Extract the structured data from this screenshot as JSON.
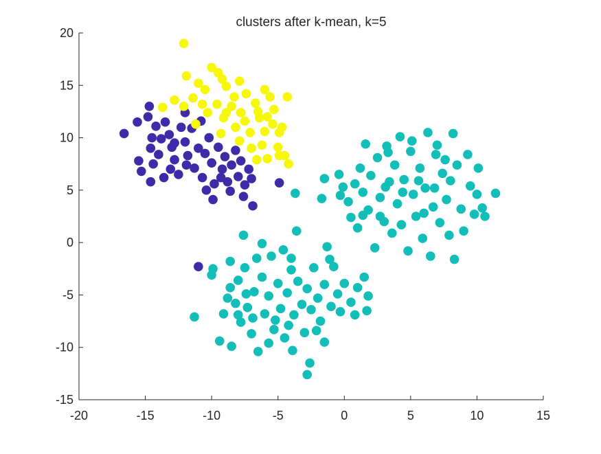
{
  "chart_data": {
    "type": "scatter",
    "title": "clusters after k-mean, k=5",
    "xlabel": "",
    "ylabel": "",
    "xlim": [
      -20,
      15
    ],
    "ylim": [
      -15,
      20
    ],
    "xticks": [
      -20,
      -15,
      -10,
      -5,
      0,
      5,
      10,
      15
    ],
    "yticks": [
      -15,
      -10,
      -5,
      0,
      5,
      10,
      15,
      20
    ],
    "xtick_labels": [
      "-20",
      "-15",
      "-10",
      "-5",
      "0",
      "5",
      "10",
      "15"
    ],
    "ytick_labels": [
      "-15",
      "-10",
      "-5",
      "0",
      "5",
      "10",
      "15",
      "20"
    ],
    "grid": false,
    "legend": "none",
    "axis_color": "#262626",
    "series": [
      {
        "color": "#3F2AA8",
        "points": [
          [
            -16.6,
            10.4
          ],
          [
            -15.6,
            11.5
          ],
          [
            -15.5,
            7.8
          ],
          [
            -15.3,
            6.8
          ],
          [
            -14.7,
            13.0
          ],
          [
            -14.8,
            12.0
          ],
          [
            -14.5,
            10.0
          ],
          [
            -14.6,
            9.0
          ],
          [
            -14.4,
            7.5
          ],
          [
            -14.6,
            5.8
          ],
          [
            -14.0,
            8.4
          ],
          [
            -13.6,
            6.2
          ],
          [
            -13.5,
            11.5
          ],
          [
            -13.2,
            10.3
          ],
          [
            -13.0,
            9.1
          ],
          [
            -12.8,
            7.9
          ],
          [
            -12.5,
            6.5
          ],
          [
            -12.3,
            11.0
          ],
          [
            -12.0,
            9.6
          ],
          [
            -11.8,
            8.3
          ],
          [
            -11.5,
            10.9
          ],
          [
            -11.3,
            7.1
          ],
          [
            -11.0,
            9.0
          ],
          [
            -10.7,
            6.2
          ],
          [
            -10.5,
            8.5
          ],
          [
            -10.2,
            10.0
          ],
          [
            -10.0,
            7.6
          ],
          [
            -9.8,
            5.6
          ],
          [
            -9.5,
            9.1
          ],
          [
            -9.2,
            7.0
          ],
          [
            -9.0,
            8.2
          ],
          [
            -8.8,
            5.8
          ],
          [
            -8.5,
            7.4
          ],
          [
            -8.2,
            8.8
          ],
          [
            -8.0,
            6.3
          ],
          [
            -7.8,
            7.8
          ],
          [
            -7.5,
            5.5
          ],
          [
            -7.2,
            7.0
          ],
          [
            -7.0,
            6.1
          ],
          [
            -7.6,
            4.4
          ],
          [
            -9.9,
            4.1
          ],
          [
            -6.9,
            3.5
          ],
          [
            -4.9,
            5.7
          ],
          [
            -11.0,
            -2.3
          ],
          [
            -12.8,
            9.5
          ],
          [
            -13.8,
            9.9
          ],
          [
            -10.8,
            11.6
          ],
          [
            -12.0,
            12.4
          ],
          [
            -9.3,
            6.2
          ],
          [
            -11.9,
            7.4
          ],
          [
            -10.4,
            5.0
          ],
          [
            -8.6,
            4.9
          ],
          [
            -13.1,
            7.0
          ],
          [
            -14.2,
            11.1
          ]
        ]
      },
      {
        "color": "#F7F70A",
        "points": [
          [
            -12.1,
            19.0
          ],
          [
            -11.9,
            15.9
          ],
          [
            -10.0,
            16.7
          ],
          [
            -9.5,
            16.2
          ],
          [
            -11.0,
            15.2
          ],
          [
            -12.8,
            13.6
          ],
          [
            -13.7,
            12.9
          ],
          [
            -11.4,
            13.8
          ],
          [
            -10.5,
            14.6
          ],
          [
            -9.6,
            13.2
          ],
          [
            -8.9,
            14.9
          ],
          [
            -8.3,
            13.9
          ],
          [
            -7.4,
            14.2
          ],
          [
            -6.7,
            13.3
          ],
          [
            -6.0,
            14.6
          ],
          [
            -5.6,
            13.9
          ],
          [
            -5.3,
            12.7
          ],
          [
            -4.3,
            13.9
          ],
          [
            -6.4,
            11.9
          ],
          [
            -7.8,
            12.4
          ],
          [
            -9.1,
            11.9
          ],
          [
            -10.3,
            12.4
          ],
          [
            -11.2,
            11.3
          ],
          [
            -8.2,
            11.0
          ],
          [
            -7.1,
            10.5
          ],
          [
            -6.0,
            10.6
          ],
          [
            -5.4,
            11.3
          ],
          [
            -4.9,
            10.5
          ],
          [
            -5.0,
            9.1
          ],
          [
            -6.2,
            9.3
          ],
          [
            -7.0,
            9.0
          ],
          [
            -7.9,
            9.7
          ],
          [
            -9.3,
            10.4
          ],
          [
            -4.9,
            8.3
          ],
          [
            -4.5,
            8.3
          ],
          [
            -4.2,
            7.5
          ],
          [
            -5.8,
            8.0
          ],
          [
            -6.6,
            7.9
          ],
          [
            -8.5,
            13.0
          ],
          [
            -10.7,
            13.2
          ],
          [
            -12.1,
            13.0
          ],
          [
            -7.9,
            15.4
          ],
          [
            -9.2,
            15.6
          ],
          [
            -6.5,
            12.5
          ],
          [
            -8.9,
            12.4
          ],
          [
            -7.5,
            11.6
          ],
          [
            -5.8,
            12.0
          ],
          [
            -4.7,
            11.0
          ]
        ]
      },
      {
        "color": "#13BEB8",
        "points": [
          [
            -11.3,
            -7.1
          ],
          [
            -10.0,
            -3.1
          ],
          [
            -9.9,
            -2.5
          ],
          [
            -9.4,
            -9.4
          ],
          [
            -9.1,
            -6.8
          ],
          [
            -8.8,
            -5.3
          ],
          [
            -8.6,
            -4.3
          ],
          [
            -8.5,
            -9.9
          ],
          [
            -8.2,
            -5.8
          ],
          [
            -8.0,
            -3.6
          ],
          [
            -7.8,
            -7.6
          ],
          [
            -7.5,
            -2.4
          ],
          [
            -7.3,
            -6.2
          ],
          [
            -7.0,
            -8.7
          ],
          [
            -6.8,
            -4.7
          ],
          [
            -6.5,
            -10.4
          ],
          [
            -6.2,
            -3.3
          ],
          [
            -6.0,
            -6.8
          ],
          [
            -5.7,
            -5.1
          ],
          [
            -5.5,
            -1.3
          ],
          [
            -5.3,
            -8.3
          ],
          [
            -5.0,
            -3.9
          ],
          [
            -4.8,
            -6.3
          ],
          [
            -4.5,
            -9.1
          ],
          [
            -4.3,
            -4.8
          ],
          [
            -4.0,
            -2.6
          ],
          [
            -3.8,
            -6.9
          ],
          [
            -3.6,
            1.1
          ],
          [
            -3.5,
            -3.7
          ],
          [
            -3.2,
            -5.9
          ],
          [
            -3.0,
            -8.6
          ],
          [
            -2.8,
            -4.4
          ],
          [
            -2.6,
            -11.5
          ],
          [
            -2.8,
            -12.6
          ],
          [
            -2.5,
            -6.4
          ],
          [
            -2.3,
            -2.4
          ],
          [
            -2.0,
            -5.3
          ],
          [
            -1.8,
            -7.5
          ],
          [
            -1.5,
            -4.0
          ],
          [
            -1.5,
            -9.5
          ],
          [
            -1.3,
            -0.4
          ],
          [
            -1.0,
            -6.1
          ],
          [
            -0.8,
            -2.3
          ],
          [
            -0.5,
            -4.9
          ],
          [
            -0.3,
            -6.6
          ],
          [
            0.0,
            -3.9
          ],
          [
            0.5,
            -5.7
          ],
          [
            0.8,
            -6.9
          ],
          [
            1.0,
            -4.3
          ],
          [
            1.5,
            -3.3
          ],
          [
            1.8,
            -5.1
          ],
          [
            1.7,
            -6.5
          ],
          [
            -7.6,
            0.7
          ],
          [
            -3.7,
            4.7
          ],
          [
            -6.2,
            -0.1
          ],
          [
            -4.0,
            -1.5
          ],
          [
            -8.6,
            -1.8
          ],
          [
            -6.9,
            -7.2
          ],
          [
            -5.7,
            -9.6
          ],
          [
            -4.2,
            -7.9
          ],
          [
            -3.9,
            -10.3
          ],
          [
            -7.4,
            -4.9
          ],
          [
            -5.2,
            -7.4
          ],
          [
            -2.1,
            -8.4
          ],
          [
            -1.1,
            -1.6
          ],
          [
            -8.0,
            -6.9
          ],
          [
            -4.6,
            -0.7
          ],
          [
            -6.6,
            -1.5
          ],
          [
            -1.7,
            4.2
          ],
          [
            -1.5,
            6.1
          ],
          [
            -0.4,
            6.5
          ],
          [
            -0.3,
            4.5
          ],
          [
            -0.1,
            5.3
          ],
          [
            0.3,
            3.9
          ],
          [
            0.5,
            2.4
          ],
          [
            0.8,
            5.6
          ],
          [
            1.0,
            1.4
          ],
          [
            1.2,
            7.1
          ],
          [
            1.4,
            4.8
          ],
          [
            1.6,
            9.4
          ],
          [
            1.8,
            3.1
          ],
          [
            2.0,
            6.4
          ],
          [
            2.3,
            -0.5
          ],
          [
            2.5,
            8.1
          ],
          [
            2.7,
            4.3
          ],
          [
            3.0,
            2.0
          ],
          [
            3.2,
            9.2
          ],
          [
            3.4,
            5.8
          ],
          [
            3.6,
            0.9
          ],
          [
            3.8,
            7.4
          ],
          [
            4.0,
            3.7
          ],
          [
            4.2,
            10.1
          ],
          [
            4.3,
            1.7
          ],
          [
            4.5,
            6.0
          ],
          [
            4.8,
            -0.8
          ],
          [
            5.0,
            8.7
          ],
          [
            5.2,
            4.6
          ],
          [
            5.4,
            2.5
          ],
          [
            5.7,
            7.1
          ],
          [
            5.9,
            0.4
          ],
          [
            6.1,
            5.2
          ],
          [
            6.3,
            10.5
          ],
          [
            6.5,
            -1.3
          ],
          [
            6.7,
            3.4
          ],
          [
            6.9,
            8.4
          ],
          [
            7.2,
            1.9
          ],
          [
            7.4,
            6.6
          ],
          [
            7.7,
            4.1
          ],
          [
            7.9,
            0.7
          ],
          [
            8.2,
            10.4
          ],
          [
            8.3,
            -1.6
          ],
          [
            8.5,
            7.4
          ],
          [
            8.8,
            3.2
          ],
          [
            9.0,
            1.1
          ],
          [
            9.3,
            8.4
          ],
          [
            9.5,
            5.4
          ],
          [
            9.8,
            2.7
          ],
          [
            10.1,
            7.1
          ],
          [
            10.4,
            3.3
          ],
          [
            10.6,
            2.5
          ],
          [
            11.4,
            4.7
          ],
          [
            10.0,
            4.6
          ],
          [
            3.1,
            5.3
          ],
          [
            4.4,
            4.8
          ],
          [
            5.6,
            5.9
          ],
          [
            6.8,
            5.2
          ],
          [
            7.6,
            7.9
          ],
          [
            2.7,
            2.5
          ],
          [
            1.4,
            2.6
          ],
          [
            6.0,
            2.8
          ],
          [
            8.0,
            5.9
          ],
          [
            3.3,
            8.6
          ],
          [
            5.1,
            9.7
          ],
          [
            7.0,
            9.3
          ]
        ]
      }
    ]
  }
}
